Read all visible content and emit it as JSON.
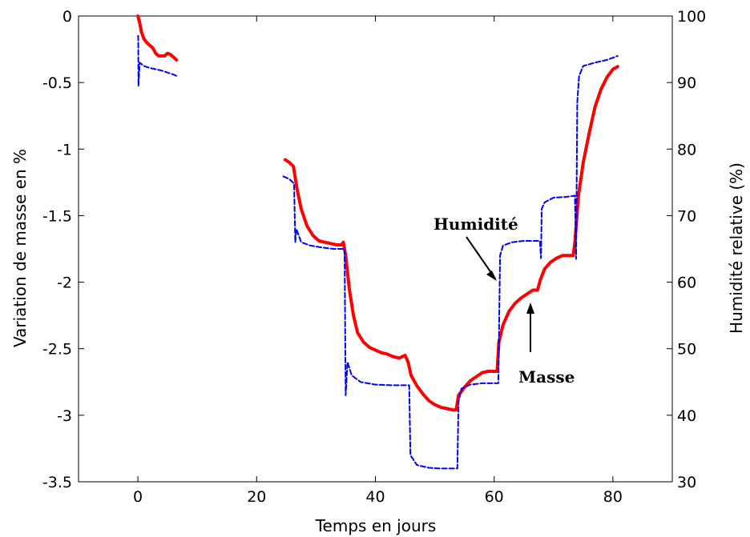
{
  "chart_data": {
    "type": "line",
    "title": "",
    "xlabel": "Temps en jours",
    "ylabel_left": "Variation de masse en %",
    "ylabel_right": "Humidité relative (%)",
    "xlim": [
      -10,
      90
    ],
    "ylim_left": [
      -3.5,
      0
    ],
    "ylim_right": [
      30,
      100
    ],
    "x_ticks": [
      0,
      20,
      40,
      60,
      80
    ],
    "y_ticks_left": [
      0,
      -0.5,
      -1,
      -1.5,
      -2,
      -2.5,
      -3,
      -3.5
    ],
    "y_ticks_left_labels": [
      "0",
      "-0.5",
      "-1",
      "-1.5",
      "-2",
      "-2.5",
      "-3",
      "-3.5"
    ],
    "y_ticks_right": [
      100,
      90,
      80,
      70,
      60,
      50,
      40,
      30
    ],
    "grid": false,
    "colors": {
      "masse": "#ff0000",
      "humidite": "#0000ff",
      "axes": "#000000"
    },
    "series": [
      {
        "name": "Masse",
        "axis": "left",
        "style": "solid",
        "segments": [
          [
            [
              0,
              0
            ],
            [
              0.3,
              -0.05
            ],
            [
              0.6,
              -0.12
            ],
            [
              1.0,
              -0.17
            ],
            [
              1.5,
              -0.2
            ],
            [
              2,
              -0.22
            ],
            [
              2.5,
              -0.24
            ],
            [
              3,
              -0.28
            ],
            [
              3.5,
              -0.3
            ],
            [
              4,
              -0.3
            ],
            [
              4.5,
              -0.3
            ],
            [
              5,
              -0.28
            ],
            [
              5.5,
              -0.29
            ],
            [
              6,
              -0.31
            ],
            [
              6.5,
              -0.33
            ]
          ],
          [
            [
              24.8,
              -1.08
            ],
            [
              25.5,
              -1.1
            ],
            [
              26.2,
              -1.13
            ],
            [
              26.8,
              -1.3
            ],
            [
              27.5,
              -1.45
            ],
            [
              28.5,
              -1.58
            ],
            [
              29.5,
              -1.65
            ],
            [
              30.5,
              -1.69
            ],
            [
              31.5,
              -1.7
            ],
            [
              32.5,
              -1.71
            ],
            [
              33.5,
              -1.72
            ],
            [
              34.3,
              -1.72
            ],
            [
              34.6,
              -1.7
            ],
            [
              35,
              -1.8
            ],
            [
              35.6,
              -2.05
            ],
            [
              36.3,
              -2.25
            ],
            [
              37,
              -2.38
            ],
            [
              38,
              -2.45
            ],
            [
              39,
              -2.49
            ],
            [
              40,
              -2.51
            ],
            [
              41,
              -2.53
            ],
            [
              42,
              -2.54
            ],
            [
              43,
              -2.56
            ],
            [
              44,
              -2.57
            ],
            [
              45,
              -2.55
            ],
            [
              45.5,
              -2.6
            ],
            [
              46,
              -2.7
            ],
            [
              47,
              -2.78
            ],
            [
              48,
              -2.84
            ],
            [
              49,
              -2.89
            ],
            [
              50,
              -2.92
            ],
            [
              51,
              -2.94
            ],
            [
              52,
              -2.95
            ],
            [
              53,
              -2.96
            ],
            [
              53.6,
              -2.96
            ],
            [
              54,
              -2.85
            ],
            [
              55,
              -2.79
            ],
            [
              56,
              -2.74
            ],
            [
              57,
              -2.71
            ],
            [
              58,
              -2.68
            ],
            [
              59,
              -2.67
            ],
            [
              60.5,
              -2.67
            ],
            [
              60.8,
              -2.45
            ],
            [
              61.5,
              -2.32
            ],
            [
              62.5,
              -2.22
            ],
            [
              63.5,
              -2.16
            ],
            [
              64.5,
              -2.12
            ],
            [
              65.5,
              -2.09
            ],
            [
              66.5,
              -2.06
            ],
            [
              67.3,
              -2.06
            ],
            [
              67.8,
              -1.98
            ],
            [
              68.5,
              -1.9
            ],
            [
              69.5,
              -1.85
            ],
            [
              70.5,
              -1.82
            ],
            [
              71.5,
              -1.8
            ],
            [
              72.5,
              -1.8
            ],
            [
              73.3,
              -1.8
            ],
            [
              73.6,
              -1.7
            ],
            [
              74.2,
              -1.35
            ],
            [
              75,
              -1.1
            ],
            [
              76,
              -0.88
            ],
            [
              77,
              -0.68
            ],
            [
              78,
              -0.55
            ],
            [
              79,
              -0.46
            ],
            [
              80,
              -0.4
            ],
            [
              80.8,
              -0.38
            ]
          ]
        ]
      },
      {
        "name": "Humidité",
        "axis": "right",
        "style": "dashed",
        "segments": [
          [
            [
              0,
              97
            ],
            [
              0.05,
              97
            ],
            [
              0.1,
              89.5
            ],
            [
              0.3,
              93
            ],
            [
              1,
              92.5
            ],
            [
              2,
              92.2
            ],
            [
              3,
              92
            ],
            [
              4,
              91.8
            ],
            [
              5,
              91.5
            ],
            [
              6,
              91.2
            ],
            [
              6.5,
              91
            ]
          ],
          [
            [
              24.5,
              75.9
            ],
            [
              25.5,
              75.5
            ],
            [
              26.3,
              74.8
            ],
            [
              26.5,
              66
            ],
            [
              26.7,
              68
            ],
            [
              27.5,
              66
            ],
            [
              29,
              65.5
            ],
            [
              31,
              65.2
            ],
            [
              33,
              65
            ],
            [
              34.8,
              65
            ],
            [
              35,
              43
            ],
            [
              35.3,
              48
            ],
            [
              36,
              46
            ],
            [
              37.5,
              45
            ],
            [
              40,
              44.6
            ],
            [
              43,
              44.5
            ],
            [
              45.7,
              44.5
            ],
            [
              45.9,
              34
            ],
            [
              47,
              32.5
            ],
            [
              49,
              32.1
            ],
            [
              51,
              32
            ],
            [
              53.8,
              32
            ],
            [
              54,
              42
            ],
            [
              54.5,
              44
            ],
            [
              56,
              44.6
            ],
            [
              58,
              44.8
            ],
            [
              60.7,
              44.8
            ],
            [
              61,
              64
            ],
            [
              61.5,
              65.5
            ],
            [
              63,
              66
            ],
            [
              65,
              66.2
            ],
            [
              67.7,
              66.2
            ],
            [
              67.9,
              63.6
            ],
            [
              68,
              71
            ],
            [
              68.5,
              72
            ],
            [
              70,
              72.7
            ],
            [
              72,
              72.8
            ],
            [
              73.6,
              73
            ],
            [
              73.8,
              63.5
            ],
            [
              74,
              87
            ],
            [
              74.3,
              91
            ],
            [
              75,
              92.5
            ],
            [
              77,
              93
            ],
            [
              79,
              93.4
            ],
            [
              80.8,
              94
            ]
          ]
        ]
      }
    ],
    "annotations": [
      {
        "text": "Humidité"
      },
      {
        "text": "Masse"
      }
    ]
  }
}
